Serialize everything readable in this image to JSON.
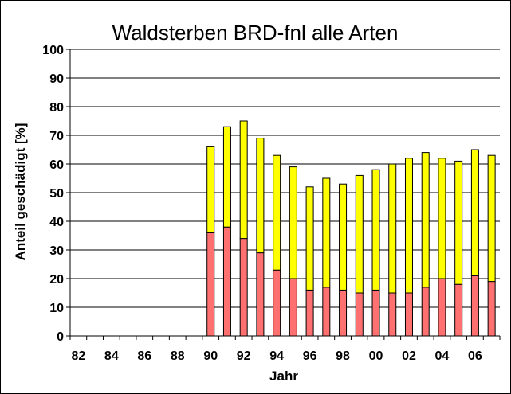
{
  "chart_data": {
    "type": "bar",
    "stacked": true,
    "title": "Waldsterben BRD-fnl   alle Arten",
    "xlabel": "Jahr",
    "ylabel": "Anteil geschädigt [%]",
    "ylim": [
      0,
      100
    ],
    "ytick_step": 10,
    "grid": true,
    "legend": "none",
    "years": [
      "82",
      "83",
      "84",
      "85",
      "86",
      "87",
      "88",
      "89",
      "90",
      "91",
      "92",
      "93",
      "94",
      "95",
      "96",
      "97",
      "98",
      "99",
      "00",
      "01",
      "02",
      "03",
      "04",
      "05",
      "06",
      "07"
    ],
    "xtick_labels": [
      "82",
      "84",
      "86",
      "88",
      "90",
      "92",
      "94",
      "96",
      "98",
      "00",
      "02",
      "04",
      "06"
    ],
    "series": [
      {
        "color": "#ff7070",
        "values": [
          null,
          null,
          null,
          null,
          null,
          null,
          null,
          null,
          36,
          38,
          34,
          29,
          23,
          20,
          16,
          17,
          16,
          15,
          16,
          15,
          15,
          17,
          20,
          18,
          21,
          19
        ]
      },
      {
        "color": "#ffff00",
        "values": [
          null,
          null,
          null,
          null,
          null,
          null,
          null,
          null,
          30,
          35,
          41,
          40,
          40,
          39,
          36,
          38,
          37,
          41,
          42,
          45,
          47,
          47,
          42,
          43,
          44,
          44
        ]
      }
    ]
  }
}
